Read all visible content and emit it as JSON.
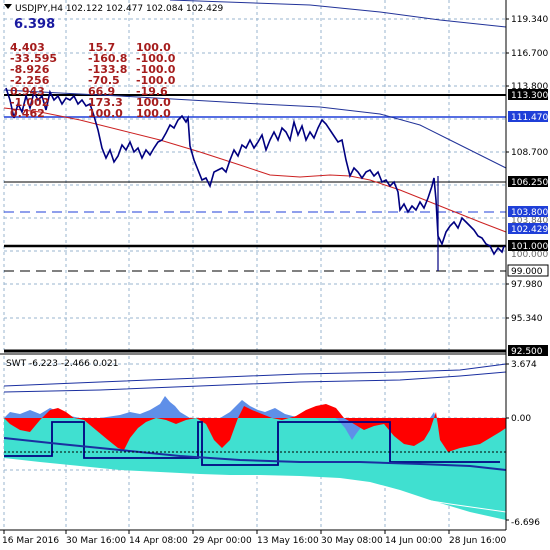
{
  "header": {
    "symbol_line": "USDJPY,H4  102.122 102.477 102.084 102.429",
    "big_value": "6.398"
  },
  "stats_table": [
    [
      "4.403",
      "15.7",
      "100.0"
    ],
    [
      "-33.595",
      "-160.8",
      "-100.0"
    ],
    [
      "-8.926",
      "-133.8",
      "-100.0"
    ],
    [
      "-2.256",
      "-70.5",
      "-100.0"
    ],
    [
      "0.943",
      "66.9",
      "-19.6"
    ],
    [
      "-1.002",
      "173.3",
      "100.0"
    ],
    [
      "0.462",
      "100.0",
      "100.0"
    ]
  ],
  "price_axis": {
    "ticks": [
      "119.340",
      "116.700",
      "113.800",
      "108.700",
      "97.980",
      "95.340"
    ],
    "faint_ticks": [
      "103.840",
      "100.000"
    ],
    "tags": [
      {
        "label": "113.300",
        "style": "black"
      },
      {
        "label": "111.470",
        "style": "blue"
      },
      {
        "label": "106.250",
        "style": "black"
      },
      {
        "label": "103.800",
        "style": "blue"
      },
      {
        "label": "102.429",
        "style": "blue"
      },
      {
        "label": "101.000",
        "style": "black"
      },
      {
        "label": "99.000",
        "style": "white"
      },
      {
        "label": "92.500",
        "style": "black"
      }
    ]
  },
  "indicator": {
    "label": "SWT -6.223 -2.466 0.021",
    "ticks": [
      "3.674",
      "0.00",
      "-6.696"
    ]
  },
  "time_axis": {
    "labels": [
      "16 Mar 2016",
      "30 Mar 16:00",
      "14 Apr 08:00",
      "29 Apr 00:00",
      "13 May 16:00",
      "30 May 08:00",
      "14 Jun 00:00",
      "28 Jun 16:00"
    ]
  },
  "colors": {
    "price_line": "#000080",
    "ma_red": "#cc2222",
    "ma_blue": "#223399",
    "tag_blue": "#1f3fd8",
    "hist_red": "#ff0000",
    "hist_blue": "#5f8fe8",
    "hist_cyan": "#40e0d0",
    "grid": "#9ab6cf"
  }
}
